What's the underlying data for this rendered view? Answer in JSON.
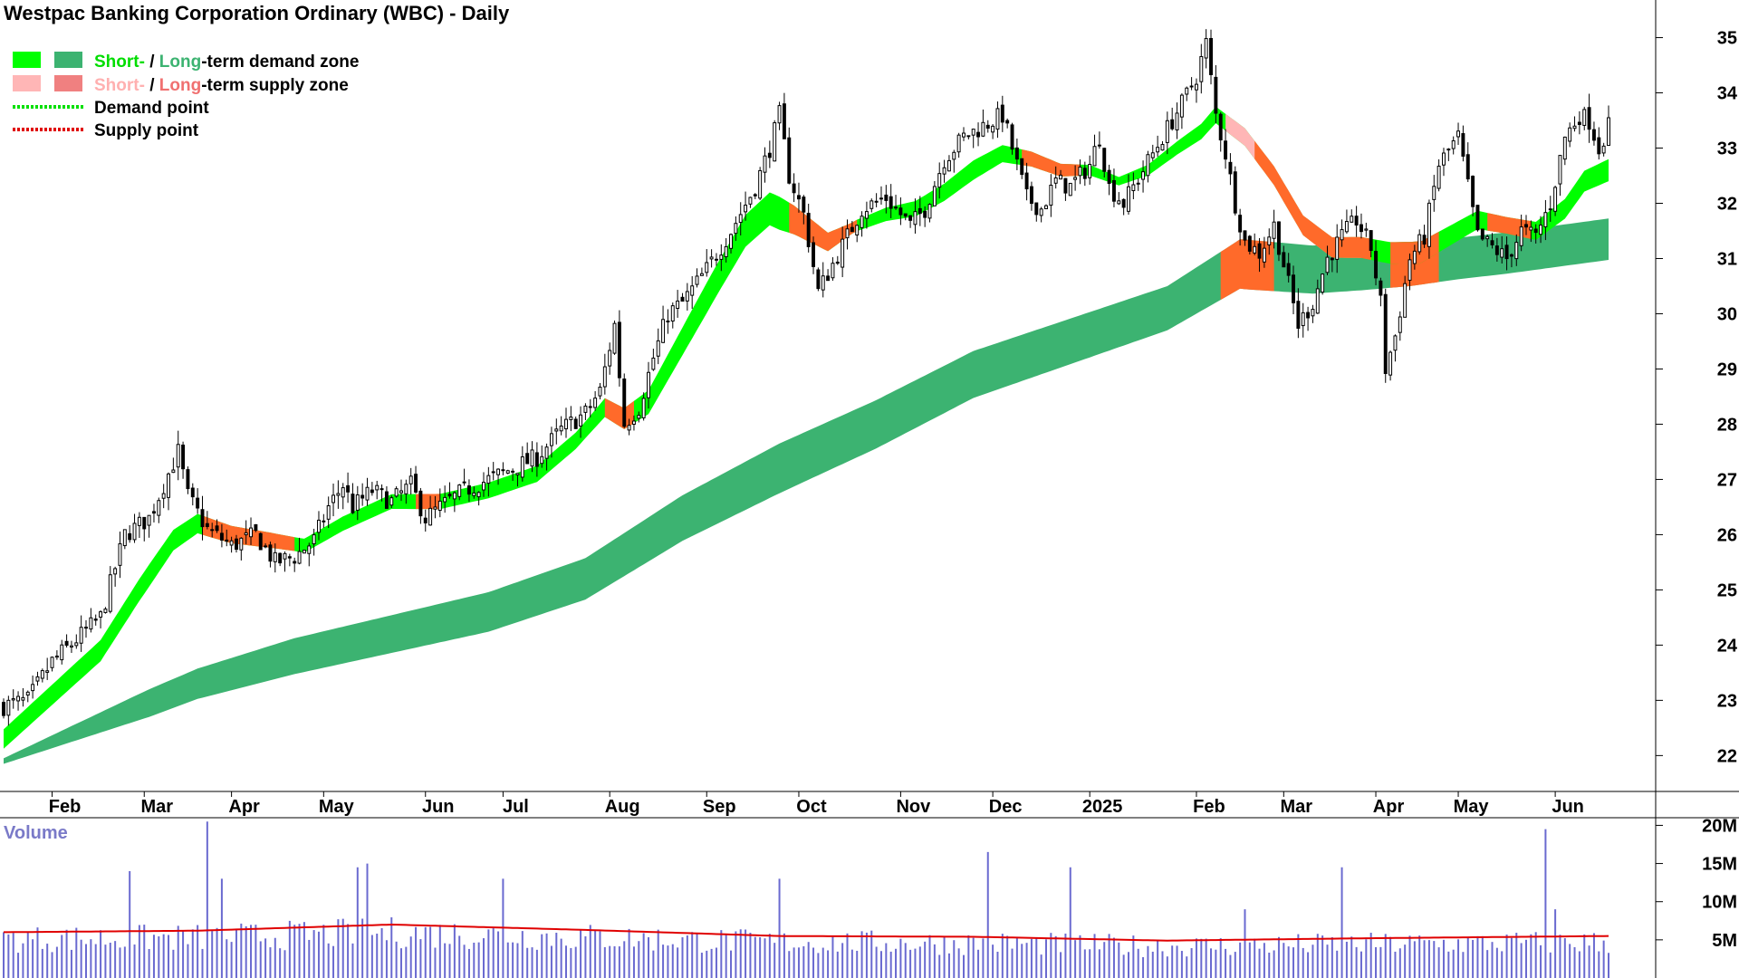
{
  "title": "Westpac Banking Corporation Ordinary (WBC) - Daily",
  "legend": [
    {
      "key": "demand",
      "prefix_short": "Short-",
      "sep": " / ",
      "prefix_long": "Long",
      "suffix": "-term demand zone",
      "short_color": "#00ff00",
      "long_color": "#3cb371"
    },
    {
      "key": "supply",
      "prefix_short": "Short-",
      "sep": " / ",
      "prefix_long": "Long",
      "suffix": "-term supply zone",
      "short_color": "#ffb6b6",
      "long_color": "#f08080"
    },
    {
      "key": "demand_point",
      "label": "Demand point",
      "color": "#00e000"
    },
    {
      "key": "supply_point",
      "label": "Supply point",
      "color": "#e00000"
    }
  ],
  "volume_label": "Volume",
  "colors": {
    "short_demand": "#00ff00",
    "long_demand": "#3cb371",
    "supply_orange": "#ff6a2a",
    "short_supply": "#ffb6b6",
    "candle": "#000000",
    "volume_bar": "#6a6ad0",
    "volume_avg": "#e00000"
  },
  "chart_data": [
    {
      "type": "candlestick",
      "title": "Westpac Banking Corporation Ordinary (WBC) - Daily",
      "x_labels": [
        "Feb",
        "Mar",
        "Apr",
        "May",
        "Jun",
        "Jul",
        "Aug",
        "Sep",
        "Oct",
        "Nov",
        "Dec",
        "2025",
        "Feb",
        "Mar",
        "Apr",
        "May",
        "Jun"
      ],
      "x_label_index": [
        10,
        29,
        47,
        66,
        87,
        103,
        125,
        145,
        164,
        185,
        204,
        224,
        246,
        264,
        283,
        300,
        320
      ],
      "y_ticks": [
        22,
        23,
        24,
        25,
        26,
        27,
        28,
        29,
        30,
        31,
        32,
        33,
        34,
        35
      ],
      "ylim": [
        21.35,
        35.55
      ],
      "price_path": [
        [
          0,
          22.9
        ],
        [
          5,
          23.0
        ],
        [
          10,
          23.7
        ],
        [
          15,
          24.1
        ],
        [
          20,
          24.5
        ],
        [
          25,
          26.0
        ],
        [
          30,
          26.3
        ],
        [
          33,
          26.9
        ],
        [
          36,
          27.5
        ],
        [
          38,
          26.7
        ],
        [
          42,
          26.1
        ],
        [
          47,
          25.8
        ],
        [
          52,
          26.0
        ],
        [
          56,
          25.5
        ],
        [
          60,
          25.6
        ],
        [
          64,
          25.9
        ],
        [
          67,
          26.5
        ],
        [
          70,
          26.9
        ],
        [
          72,
          26.5
        ],
        [
          76,
          26.8
        ],
        [
          80,
          26.6
        ],
        [
          84,
          26.9
        ],
        [
          87,
          26.3
        ],
        [
          90,
          26.5
        ],
        [
          95,
          26.8
        ],
        [
          100,
          27.0
        ],
        [
          105,
          27.2
        ],
        [
          110,
          27.4
        ],
        [
          115,
          27.9
        ],
        [
          120,
          28.2
        ],
        [
          123,
          28.6
        ],
        [
          126,
          29.8
        ],
        [
          128,
          28.0
        ],
        [
          131,
          28.3
        ],
        [
          134,
          29.2
        ],
        [
          137,
          30.0
        ],
        [
          140,
          30.2
        ],
        [
          145,
          30.8
        ],
        [
          150,
          31.5
        ],
        [
          155,
          32.3
        ],
        [
          158,
          33.0
        ],
        [
          160,
          33.6
        ],
        [
          162,
          32.5
        ],
        [
          165,
          31.8
        ],
        [
          168,
          30.4
        ],
        [
          171,
          30.9
        ],
        [
          174,
          31.4
        ],
        [
          177,
          31.9
        ],
        [
          182,
          32.1
        ],
        [
          187,
          31.6
        ],
        [
          190,
          31.9
        ],
        [
          194,
          32.8
        ],
        [
          198,
          33.2
        ],
        [
          202,
          33.4
        ],
        [
          206,
          33.6
        ],
        [
          208,
          33.0
        ],
        [
          211,
          32.1
        ],
        [
          214,
          31.9
        ],
        [
          217,
          32.4
        ],
        [
          220,
          32.3
        ],
        [
          224,
          32.7
        ],
        [
          226,
          33.2
        ],
        [
          228,
          32.3
        ],
        [
          231,
          32.0
        ],
        [
          235,
          32.6
        ],
        [
          239,
          33.2
        ],
        [
          243,
          33.8
        ],
        [
          246,
          34.3
        ],
        [
          248,
          34.9
        ],
        [
          250,
          33.6
        ],
        [
          252,
          32.9
        ],
        [
          254,
          32.0
        ],
        [
          256,
          31.3
        ],
        [
          259,
          31.1
        ],
        [
          262,
          31.6
        ],
        [
          264,
          30.9
        ],
        [
          267,
          29.8
        ],
        [
          270,
          30.2
        ],
        [
          273,
          31.0
        ],
        [
          276,
          31.4
        ],
        [
          279,
          31.7
        ],
        [
          282,
          31.2
        ],
        [
          284,
          30.2
        ],
        [
          285,
          29.0
        ],
        [
          287,
          29.6
        ],
        [
          290,
          31.0
        ],
        [
          293,
          31.4
        ],
        [
          296,
          32.7
        ],
        [
          300,
          33.2
        ],
        [
          302,
          32.3
        ],
        [
          304,
          31.4
        ],
        [
          307,
          31.2
        ],
        [
          310,
          31.0
        ],
        [
          313,
          31.5
        ],
        [
          316,
          31.4
        ],
        [
          319,
          32.0
        ],
        [
          322,
          33.2
        ],
        [
          325,
          33.6
        ],
        [
          327,
          33.5
        ],
        [
          329,
          33.0
        ],
        [
          331,
          33.4
        ]
      ],
      "short_zone_path": [
        [
          0,
          22.3
        ],
        [
          10,
          23.1
        ],
        [
          20,
          23.9
        ],
        [
          28,
          25.0
        ],
        [
          35,
          25.9
        ],
        [
          40,
          26.2
        ],
        [
          47,
          26.0
        ],
        [
          55,
          25.9
        ],
        [
          62,
          25.8
        ],
        [
          70,
          26.2
        ],
        [
          80,
          26.6
        ],
        [
          90,
          26.6
        ],
        [
          100,
          26.8
        ],
        [
          110,
          27.1
        ],
        [
          118,
          27.7
        ],
        [
          124,
          28.3
        ],
        [
          128,
          28.1
        ],
        [
          133,
          28.4
        ],
        [
          140,
          29.5
        ],
        [
          147,
          30.6
        ],
        [
          153,
          31.5
        ],
        [
          158,
          31.9
        ],
        [
          163,
          31.7
        ],
        [
          170,
          31.3
        ],
        [
          176,
          31.6
        ],
        [
          182,
          31.8
        ],
        [
          188,
          31.9
        ],
        [
          194,
          32.2
        ],
        [
          200,
          32.6
        ],
        [
          206,
          32.9
        ],
        [
          212,
          32.8
        ],
        [
          218,
          32.6
        ],
        [
          224,
          32.6
        ],
        [
          230,
          32.4
        ],
        [
          236,
          32.6
        ],
        [
          242,
          33.0
        ],
        [
          247,
          33.3
        ],
        [
          250,
          33.6
        ],
        [
          256,
          33.2
        ],
        [
          262,
          32.5
        ],
        [
          268,
          31.6
        ],
        [
          274,
          31.2
        ],
        [
          280,
          31.2
        ],
        [
          286,
          31.1
        ],
        [
          292,
          31.1
        ],
        [
          298,
          31.4
        ],
        [
          304,
          31.7
        ],
        [
          310,
          31.6
        ],
        [
          316,
          31.5
        ],
        [
          322,
          31.9
        ],
        [
          326,
          32.4
        ],
        [
          331,
          32.6
        ]
      ],
      "short_zone_width": [
        [
          0,
          0.35
        ],
        [
          30,
          0.4
        ],
        [
          60,
          0.25
        ],
        [
          120,
          0.3
        ],
        [
          145,
          0.55
        ],
        [
          160,
          0.6
        ],
        [
          175,
          0.2
        ],
        [
          200,
          0.35
        ],
        [
          230,
          0.15
        ],
        [
          250,
          0.3
        ],
        [
          265,
          0.35
        ],
        [
          290,
          0.4
        ],
        [
          310,
          0.3
        ],
        [
          331,
          0.4
        ]
      ],
      "long_zone_path": [
        [
          0,
          21.9
        ],
        [
          20,
          22.6
        ],
        [
          40,
          23.3
        ],
        [
          60,
          23.8
        ],
        [
          80,
          24.2
        ],
        [
          100,
          24.6
        ],
        [
          120,
          25.2
        ],
        [
          140,
          26.3
        ],
        [
          160,
          27.2
        ],
        [
          180,
          28.0
        ],
        [
          200,
          28.9
        ],
        [
          220,
          29.5
        ],
        [
          240,
          30.1
        ],
        [
          255,
          30.9
        ],
        [
          270,
          30.8
        ],
        [
          290,
          30.9
        ],
        [
          310,
          31.1
        ],
        [
          331,
          31.35
        ]
      ],
      "long_zone_width": [
        [
          0,
          0.1
        ],
        [
          30,
          0.5
        ],
        [
          60,
          0.65
        ],
        [
          120,
          0.75
        ],
        [
          160,
          0.9
        ],
        [
          200,
          0.85
        ],
        [
          240,
          0.8
        ],
        [
          256,
          0.9
        ],
        [
          280,
          0.85
        ],
        [
          300,
          0.75
        ],
        [
          331,
          0.75
        ]
      ],
      "supply_segments": [
        [
          41,
          60
        ],
        [
          85,
          90
        ],
        [
          124,
          130
        ],
        [
          162,
          176
        ],
        [
          210,
          222
        ],
        [
          251,
          262
        ],
        [
          258,
          282
        ],
        [
          286,
          296
        ],
        [
          306,
          315
        ]
      ],
      "short_supply_segment": [
        252,
        280
      ]
    },
    {
      "type": "bar",
      "title": "Volume",
      "y_ticks": [
        "5M",
        "10M",
        "15M",
        "20M"
      ],
      "y_tick_values": [
        5,
        10,
        15,
        20
      ],
      "ylim": [
        0,
        21
      ],
      "avg_level": [
        [
          0,
          6.0
        ],
        [
          40,
          6.2
        ],
        [
          80,
          7.0
        ],
        [
          120,
          6.3
        ],
        [
          160,
          5.5
        ],
        [
          200,
          5.4
        ],
        [
          240,
          4.9
        ],
        [
          280,
          5.2
        ],
        [
          331,
          5.5
        ]
      ],
      "spikes": [
        [
          26,
          14
        ],
        [
          42,
          20.5
        ],
        [
          45,
          13
        ],
        [
          73,
          14.5
        ],
        [
          75,
          15
        ],
        [
          103,
          13
        ],
        [
          160,
          13
        ],
        [
          203,
          16.5
        ],
        [
          220,
          14.5
        ],
        [
          256,
          9
        ],
        [
          276,
          14.5
        ],
        [
          318,
          19.5
        ],
        [
          320,
          9
        ]
      ]
    }
  ]
}
